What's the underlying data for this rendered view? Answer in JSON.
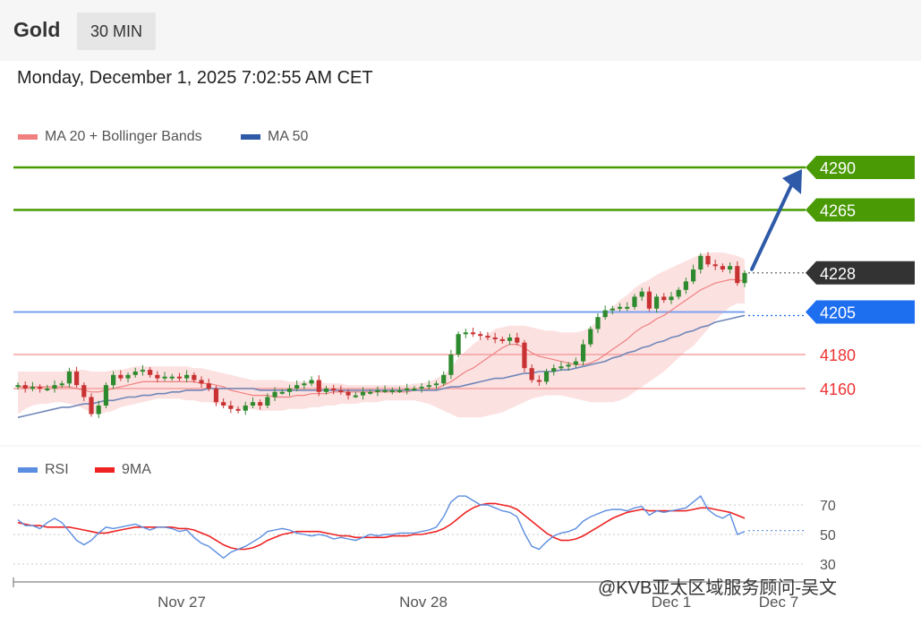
{
  "header": {
    "symbol": "Gold",
    "timeframe": "30 MIN",
    "datetime": "Monday, December 1, 2025 7:02:55 AM CET"
  },
  "watermark": "@KVB亚太区域服务顾问-吴文",
  "colors": {
    "bollinger": "#f08080",
    "ma50": "#2e5aa8",
    "target": "#4a9a06",
    "current": "#333333",
    "support": "#1e6ef0",
    "minor_level": "#ee3333",
    "candle_up": "#2e8a2e",
    "candle_down": "#c83232",
    "rsi": "#5b8de0",
    "rsi_ma": "#ee2222"
  },
  "chart_data": [
    {
      "type": "candlestick",
      "title": "Gold 30 MIN",
      "legend": [
        {
          "name": "MA 20 + Bollinger Bands",
          "color": "#f08080"
        },
        {
          "name": "MA 50",
          "color": "#2e5aa8"
        }
      ],
      "x_ticks": [
        "Nov 27",
        "Nov 28",
        "Dec 1",
        "Dec 7"
      ],
      "levels": [
        {
          "value": 4290,
          "label": "4290",
          "kind": "target",
          "color": "#4a9a06"
        },
        {
          "value": 4265,
          "label": "4265",
          "kind": "target",
          "color": "#4a9a06"
        },
        {
          "value": 4228,
          "label": "4228",
          "kind": "current",
          "color": "#333333"
        },
        {
          "value": 4205,
          "label": "4205",
          "kind": "support",
          "color": "#1e6ef0"
        },
        {
          "value": 4180,
          "label": "4180",
          "kind": "minor",
          "color": "#ee3333"
        },
        {
          "value": 4160,
          "label": "4160",
          "kind": "minor",
          "color": "#ee3333"
        }
      ],
      "close": [
        4162,
        4160,
        4161,
        4160,
        4160,
        4162,
        4163,
        4170,
        4162,
        4155,
        4145,
        4150,
        4162,
        4168,
        4166,
        4168,
        4170,
        4171,
        4168,
        4166,
        4167,
        4167,
        4166,
        4168,
        4165,
        4163,
        4160,
        4152,
        4150,
        4148,
        4147,
        4150,
        4152,
        4150,
        4155,
        4158,
        4158,
        4160,
        4162,
        4163,
        4165,
        4158,
        4160,
        4159,
        4158,
        4156,
        4156,
        4158,
        4158,
        4159,
        4159,
        4159,
        4159,
        4160,
        4160,
        4161,
        4162,
        4163,
        4168,
        4180,
        4192,
        4193,
        4192,
        4191,
        4190,
        4189,
        4188,
        4190,
        4187,
        4172,
        4165,
        4164,
        4170,
        4172,
        4173,
        4174,
        4176,
        4186,
        4195,
        4202,
        4206,
        4207,
        4208,
        4208,
        4214,
        4217,
        4207,
        4214,
        4212,
        4214,
        4218,
        4223,
        4230,
        4238,
        4233,
        4232,
        4230,
        4232,
        4222,
        4228
      ],
      "ma20": [
        4161,
        4161,
        4161,
        4161,
        4161,
        4161,
        4161,
        4161,
        4160,
        4159,
        4158,
        4158,
        4159,
        4160,
        4161,
        4162,
        4163,
        4164,
        4164,
        4164,
        4164,
        4164,
        4164,
        4164,
        4164,
        4163,
        4163,
        4162,
        4161,
        4159,
        4158,
        4157,
        4156,
        4156,
        4156,
        4155,
        4155,
        4155,
        4156,
        4156,
        4157,
        4157,
        4157,
        4158,
        4158,
        4158,
        4158,
        4158,
        4158,
        4158,
        4158,
        4158,
        4158,
        4158,
        4159,
        4159,
        4160,
        4160,
        4162,
        4164,
        4167,
        4170,
        4172,
        4175,
        4178,
        4181,
        4184,
        4186,
        4186,
        4184,
        4181,
        4179,
        4178,
        4177,
        4176,
        4175,
        4174,
        4174,
        4175,
        4177,
        4180,
        4183,
        4186,
        4189,
        4193,
        4196,
        4198,
        4201,
        4203,
        4206,
        4209,
        4212,
        4215,
        4218,
        4220,
        4222,
        4223,
        4224,
        4224,
        4223
      ],
      "bb_upper": [
        4170,
        4170,
        4170,
        4170,
        4170,
        4170,
        4170,
        4171,
        4171,
        4171,
        4170,
        4170,
        4170,
        4171,
        4171,
        4172,
        4173,
        4173,
        4173,
        4173,
        4173,
        4173,
        4173,
        4173,
        4172,
        4172,
        4171,
        4170,
        4169,
        4168,
        4167,
        4166,
        4165,
        4165,
        4165,
        4165,
        4165,
        4164,
        4164,
        4164,
        4164,
        4164,
        4163,
        4163,
        4163,
        4162,
        4162,
        4162,
        4162,
        4162,
        4162,
        4162,
        4162,
        4162,
        4163,
        4163,
        4164,
        4166,
        4168,
        4172,
        4178,
        4182,
        4186,
        4189,
        4192,
        4195,
        4196,
        4197,
        4197,
        4197,
        4196,
        4195,
        4194,
        4194,
        4193,
        4193,
        4193,
        4194,
        4196,
        4200,
        4205,
        4208,
        4212,
        4215,
        4219,
        4222,
        4224,
        4227,
        4229,
        4231,
        4233,
        4235,
        4237,
        4239,
        4240,
        4240,
        4240,
        4239,
        4238,
        4236
      ],
      "bb_lower": [
        4145,
        4148,
        4150,
        4151,
        4151,
        4152,
        4152,
        4151,
        4150,
        4148,
        4146,
        4145,
        4146,
        4147,
        4149,
        4150,
        4151,
        4152,
        4153,
        4154,
        4154,
        4154,
        4154,
        4153,
        4153,
        4152,
        4152,
        4151,
        4150,
        4149,
        4148,
        4148,
        4148,
        4147,
        4147,
        4147,
        4147,
        4148,
        4148,
        4148,
        4149,
        4149,
        4150,
        4150,
        4151,
        4151,
        4151,
        4152,
        4152,
        4152,
        4153,
        4153,
        4153,
        4153,
        4153,
        4152,
        4151,
        4149,
        4147,
        4145,
        4143,
        4143,
        4143,
        4143,
        4144,
        4145,
        4146,
        4148,
        4150,
        4152,
        4154,
        4155,
        4156,
        4156,
        4156,
        4155,
        4154,
        4153,
        4152,
        4152,
        4152,
        4152,
        4153,
        4155,
        4158,
        4161,
        4164,
        4167,
        4170,
        4174,
        4178,
        4182,
        4185,
        4190,
        4195,
        4200,
        4204,
        4208,
        4210,
        4210
      ],
      "ma50": [
        4143,
        4144,
        4145,
        4146,
        4147,
        4148,
        4149,
        4149,
        4150,
        4151,
        4151,
        4152,
        4153,
        4153,
        4154,
        4155,
        4155,
        4156,
        4156,
        4157,
        4157,
        4158,
        4158,
        4159,
        4159,
        4159,
        4160,
        4160,
        4160,
        4160,
        4160,
        4160,
        4160,
        4159,
        4159,
        4159,
        4159,
        4159,
        4159,
        4159,
        4159,
        4159,
        4159,
        4159,
        4159,
        4159,
        4159,
        4159,
        4159,
        4159,
        4159,
        4159,
        4159,
        4159,
        4159,
        4159,
        4159,
        4159,
        4160,
        4161,
        4161,
        4162,
        4163,
        4164,
        4165,
        4166,
        4166,
        4167,
        4168,
        4169,
        4169,
        4170,
        4170,
        4170,
        4171,
        4171,
        4172,
        4173,
        4174,
        4175,
        4176,
        4178,
        4179,
        4181,
        4182,
        4184,
        4185,
        4187,
        4188,
        4190,
        4191,
        4193,
        4194,
        4196,
        4197,
        4199,
        4200,
        4201,
        4202,
        4203
      ],
      "forecast": {
        "from": 4228,
        "to": 4290,
        "direction": "up"
      }
    },
    {
      "type": "line",
      "title": "RSI",
      "legend": [
        {
          "name": "RSI",
          "color": "#5b8de0"
        },
        {
          "name": "9MA",
          "color": "#ee2222"
        }
      ],
      "y_ticks": [
        70,
        50,
        30
      ],
      "ylim": [
        25,
        85
      ],
      "rsi": [
        60,
        56,
        56,
        54,
        58,
        61,
        58,
        52,
        46,
        43,
        46,
        51,
        55,
        54,
        55,
        56,
        57,
        55,
        53,
        55,
        55,
        54,
        52,
        53,
        48,
        44,
        42,
        38,
        34,
        38,
        40,
        42,
        45,
        48,
        52,
        53,
        54,
        53,
        51,
        50,
        49,
        50,
        49,
        47,
        48,
        47,
        46,
        48,
        50,
        49,
        50,
        50,
        51,
        51,
        51,
        52,
        53,
        55,
        62,
        72,
        76,
        76,
        73,
        70,
        70,
        68,
        66,
        65,
        62,
        51,
        42,
        40,
        45,
        49,
        51,
        52,
        54,
        59,
        62,
        64,
        66,
        67,
        67,
        66,
        68,
        69,
        63,
        66,
        65,
        66,
        67,
        68,
        72,
        76,
        67,
        63,
        61,
        64,
        50,
        52
      ],
      "ma9": [
        58,
        57,
        56,
        56,
        55,
        55,
        55,
        55,
        54,
        53,
        52,
        51,
        51,
        52,
        53,
        54,
        55,
        55,
        55,
        55,
        55,
        55,
        54,
        54,
        53,
        51,
        49,
        46,
        43,
        41,
        40,
        40,
        41,
        43,
        46,
        48,
        50,
        51,
        52,
        52,
        52,
        52,
        51,
        50,
        49,
        49,
        48,
        48,
        48,
        48,
        48,
        49,
        49,
        49,
        50,
        50,
        51,
        52,
        54,
        57,
        61,
        65,
        68,
        70,
        71,
        71,
        70,
        69,
        67,
        63,
        59,
        55,
        51,
        48,
        46,
        46,
        47,
        49,
        52,
        55,
        58,
        61,
        63,
        65,
        66,
        67,
        66,
        66,
        66,
        66,
        66,
        66,
        67,
        68,
        68,
        67,
        66,
        65,
        63,
        61
      ]
    }
  ]
}
